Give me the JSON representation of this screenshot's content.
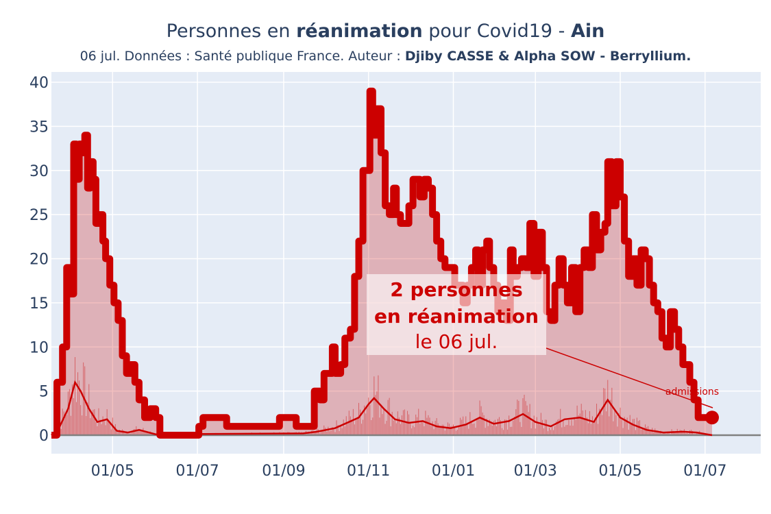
{
  "header": {
    "title_pre": "Personnes en ",
    "title_bold": "réanimation",
    "title_mid": " pour Covid19 - ",
    "title_region": "Ain",
    "subtitle_pre": "06 jul. Données : Santé publique France. Auteur : ",
    "subtitle_bold": "Djiby CASSE & Alpha SOW - Berryllium."
  },
  "annotation": {
    "line1": "2 personnes",
    "line2": "en réanimation",
    "line3": "le 06 jul."
  },
  "colors": {
    "plot_bg": "#e5ecf6",
    "main": "#cc0000",
    "fill": "rgba(204,0,0,0.25)",
    "text": "#2a3f5f"
  },
  "chart_data": {
    "type": "line",
    "ylim": [
      0,
      40
    ],
    "yticks": [
      0,
      5,
      10,
      15,
      20,
      25,
      30,
      35,
      40
    ],
    "x_range": [
      "2020-03-18",
      "2021-08-10"
    ],
    "xticks": [
      {
        "date": "2020-05-01",
        "label": "01/05"
      },
      {
        "date": "2020-07-01",
        "label": "01/07"
      },
      {
        "date": "2020-09-01",
        "label": "01/09"
      },
      {
        "date": "2020-11-01",
        "label": "01/11"
      },
      {
        "date": "2021-01-01",
        "label": "01/01"
      },
      {
        "date": "2021-03-01",
        "label": "01/03"
      },
      {
        "date": "2021-05-01",
        "label": "01/05"
      },
      {
        "date": "2021-07-01",
        "label": "01/07"
      }
    ],
    "admissions_label": "admissions",
    "series": [
      {
        "role": "reanimations",
        "points": [
          [
            "2020-03-18",
            0
          ],
          [
            "2020-03-22",
            6
          ],
          [
            "2020-03-26",
            10
          ],
          [
            "2020-03-29",
            19
          ],
          [
            "2020-04-01",
            16
          ],
          [
            "2020-04-03",
            33
          ],
          [
            "2020-04-05",
            29
          ],
          [
            "2020-04-07",
            33
          ],
          [
            "2020-04-09",
            32
          ],
          [
            "2020-04-11",
            34
          ],
          [
            "2020-04-13",
            28
          ],
          [
            "2020-04-15",
            31
          ],
          [
            "2020-04-17",
            29
          ],
          [
            "2020-04-19",
            24
          ],
          [
            "2020-04-21",
            25
          ],
          [
            "2020-04-24",
            22
          ],
          [
            "2020-04-26",
            20
          ],
          [
            "2020-04-29",
            17
          ],
          [
            "2020-05-02",
            15
          ],
          [
            "2020-05-05",
            13
          ],
          [
            "2020-05-08",
            9
          ],
          [
            "2020-05-11",
            7
          ],
          [
            "2020-05-14",
            8
          ],
          [
            "2020-05-17",
            6
          ],
          [
            "2020-05-20",
            4
          ],
          [
            "2020-05-24",
            2
          ],
          [
            "2020-05-28",
            3
          ],
          [
            "2020-06-01",
            2
          ],
          [
            "2020-06-04",
            0
          ],
          [
            "2020-06-28",
            0
          ],
          [
            "2020-07-02",
            1
          ],
          [
            "2020-07-05",
            2
          ],
          [
            "2020-07-20",
            2
          ],
          [
            "2020-07-22",
            1
          ],
          [
            "2020-08-27",
            1
          ],
          [
            "2020-08-29",
            2
          ],
          [
            "2020-09-08",
            2
          ],
          [
            "2020-09-10",
            1
          ],
          [
            "2020-09-21",
            1
          ],
          [
            "2020-09-23",
            5
          ],
          [
            "2020-09-27",
            4
          ],
          [
            "2020-09-30",
            7
          ],
          [
            "2020-10-03",
            7
          ],
          [
            "2020-10-06",
            10
          ],
          [
            "2020-10-08",
            7
          ],
          [
            "2020-10-12",
            8
          ],
          [
            "2020-10-15",
            11
          ],
          [
            "2020-10-19",
            12
          ],
          [
            "2020-10-22",
            18
          ],
          [
            "2020-10-25",
            22
          ],
          [
            "2020-10-28",
            30
          ],
          [
            "2020-10-30",
            30
          ],
          [
            "2020-11-02",
            39
          ],
          [
            "2020-11-04",
            34
          ],
          [
            "2020-11-07",
            37
          ],
          [
            "2020-11-10",
            32
          ],
          [
            "2020-11-13",
            26
          ],
          [
            "2020-11-16",
            25
          ],
          [
            "2020-11-19",
            28
          ],
          [
            "2020-11-21",
            25
          ],
          [
            "2020-11-24",
            24
          ],
          [
            "2020-11-27",
            24
          ],
          [
            "2020-11-30",
            26
          ],
          [
            "2020-12-03",
            29
          ],
          [
            "2020-12-05",
            29
          ],
          [
            "2020-12-08",
            27
          ],
          [
            "2020-12-11",
            29
          ],
          [
            "2020-12-14",
            28
          ],
          [
            "2020-12-17",
            25
          ],
          [
            "2020-12-20",
            22
          ],
          [
            "2020-12-23",
            20
          ],
          [
            "2020-12-26",
            19
          ],
          [
            "2020-12-29",
            19
          ],
          [
            "2021-01-02",
            17
          ],
          [
            "2021-01-05",
            17
          ],
          [
            "2021-01-08",
            15
          ],
          [
            "2021-01-11",
            17
          ],
          [
            "2021-01-14",
            19
          ],
          [
            "2021-01-17",
            21
          ],
          [
            "2021-01-19",
            17
          ],
          [
            "2021-01-22",
            21
          ],
          [
            "2021-01-25",
            22
          ],
          [
            "2021-01-27",
            19
          ],
          [
            "2021-01-30",
            17
          ],
          [
            "2021-02-02",
            14
          ],
          [
            "2021-02-05",
            15
          ],
          [
            "2021-02-08",
            13
          ],
          [
            "2021-02-11",
            21
          ],
          [
            "2021-02-13",
            18
          ],
          [
            "2021-02-16",
            19
          ],
          [
            "2021-02-19",
            20
          ],
          [
            "2021-02-22",
            19
          ],
          [
            "2021-02-25",
            24
          ],
          [
            "2021-02-28",
            18
          ],
          [
            "2021-03-03",
            23
          ],
          [
            "2021-03-06",
            19
          ],
          [
            "2021-03-09",
            14
          ],
          [
            "2021-03-12",
            13
          ],
          [
            "2021-03-15",
            17
          ],
          [
            "2021-03-18",
            20
          ],
          [
            "2021-03-21",
            17
          ],
          [
            "2021-03-24",
            15
          ],
          [
            "2021-03-27",
            19
          ],
          [
            "2021-03-30",
            14
          ],
          [
            "2021-04-02",
            19
          ],
          [
            "2021-04-05",
            21
          ],
          [
            "2021-04-08",
            19
          ],
          [
            "2021-04-11",
            25
          ],
          [
            "2021-04-14",
            21
          ],
          [
            "2021-04-17",
            23
          ],
          [
            "2021-04-20",
            24
          ],
          [
            "2021-04-22",
            31
          ],
          [
            "2021-04-25",
            26
          ],
          [
            "2021-04-28",
            31
          ],
          [
            "2021-05-01",
            27
          ],
          [
            "2021-05-04",
            22
          ],
          [
            "2021-05-07",
            18
          ],
          [
            "2021-05-10",
            20
          ],
          [
            "2021-05-13",
            17
          ],
          [
            "2021-05-16",
            21
          ],
          [
            "2021-05-19",
            20
          ],
          [
            "2021-05-22",
            17
          ],
          [
            "2021-05-25",
            15
          ],
          [
            "2021-05-28",
            14
          ],
          [
            "2021-05-31",
            11
          ],
          [
            "2021-06-03",
            10
          ],
          [
            "2021-06-06",
            14
          ],
          [
            "2021-06-09",
            12
          ],
          [
            "2021-06-12",
            10
          ],
          [
            "2021-06-15",
            8
          ],
          [
            "2021-06-18",
            8
          ],
          [
            "2021-06-20",
            6
          ],
          [
            "2021-06-23",
            4
          ],
          [
            "2021-06-26",
            2
          ],
          [
            "2021-07-06",
            2
          ]
        ]
      },
      {
        "role": "admissions",
        "points": [
          [
            "2020-03-18",
            0
          ],
          [
            "2020-03-24",
            1
          ],
          [
            "2020-03-30",
            3
          ],
          [
            "2020-04-04",
            6
          ],
          [
            "2020-04-08",
            5
          ],
          [
            "2020-04-14",
            3
          ],
          [
            "2020-04-20",
            1.5
          ],
          [
            "2020-04-27",
            1.8
          ],
          [
            "2020-05-04",
            0.5
          ],
          [
            "2020-05-12",
            0.3
          ],
          [
            "2020-05-20",
            0.6
          ],
          [
            "2020-06-01",
            0.1
          ],
          [
            "2020-09-15",
            0.2
          ],
          [
            "2020-09-25",
            0.4
          ],
          [
            "2020-10-08",
            0.8
          ],
          [
            "2020-10-18",
            1.5
          ],
          [
            "2020-10-25",
            2
          ],
          [
            "2020-11-01",
            3.5
          ],
          [
            "2020-11-05",
            4.2
          ],
          [
            "2020-11-12",
            3
          ],
          [
            "2020-11-20",
            1.8
          ],
          [
            "2020-11-30",
            1.4
          ],
          [
            "2020-12-10",
            1.6
          ],
          [
            "2020-12-20",
            1
          ],
          [
            "2020-12-30",
            0.8
          ],
          [
            "2021-01-10",
            1.2
          ],
          [
            "2021-01-20",
            2
          ],
          [
            "2021-01-30",
            1.3
          ],
          [
            "2021-02-10",
            1.6
          ],
          [
            "2021-02-20",
            2.4
          ],
          [
            "2021-03-01",
            1.5
          ],
          [
            "2021-03-12",
            1
          ],
          [
            "2021-03-22",
            1.8
          ],
          [
            "2021-04-02",
            2
          ],
          [
            "2021-04-12",
            1.5
          ],
          [
            "2021-04-22",
            4
          ],
          [
            "2021-05-01",
            2
          ],
          [
            "2021-05-10",
            1.2
          ],
          [
            "2021-05-20",
            0.6
          ],
          [
            "2021-06-01",
            0.3
          ],
          [
            "2021-06-15",
            0.4
          ],
          [
            "2021-06-25",
            0.3
          ],
          [
            "2021-07-06",
            0
          ]
        ]
      }
    ]
  }
}
